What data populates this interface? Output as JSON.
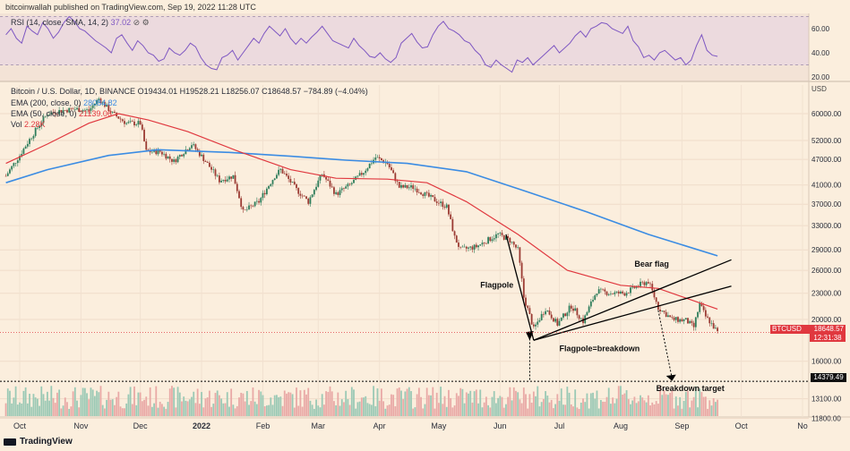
{
  "header": {
    "publisher": "bitcoinwallah published on TradingView.com, Sep 19, 2022 11:28 UTC"
  },
  "rsi": {
    "label": "RSI (14, close, SMA, 14, 2)",
    "value": "37.02",
    "ticks": [
      "60.00",
      "40.00",
      "20.00"
    ],
    "upper": 70,
    "lower": 30,
    "values": [
      55,
      60,
      52,
      48,
      62,
      58,
      55,
      65,
      60,
      52,
      57,
      65,
      70,
      66,
      60,
      58,
      54,
      50,
      47,
      44,
      40,
      52,
      55,
      48,
      42,
      50,
      46,
      40,
      38,
      33,
      35,
      44,
      40,
      38,
      42,
      48,
      45,
      36,
      30,
      27,
      26,
      36,
      38,
      42,
      34,
      40,
      46,
      52,
      48,
      56,
      62,
      58,
      54,
      60,
      52,
      47,
      52,
      48,
      53,
      57,
      62,
      56,
      50,
      48,
      46,
      44,
      52,
      46,
      42,
      37,
      36,
      40,
      35,
      32,
      36,
      48,
      52,
      56,
      49,
      44,
      45,
      55,
      62,
      66,
      60,
      58,
      55,
      50,
      48,
      42,
      38,
      30,
      28,
      34,
      30,
      27,
      24,
      34,
      32,
      36,
      30,
      34,
      38,
      42,
      46,
      40,
      44,
      48,
      54,
      58,
      53,
      60,
      62,
      65,
      64,
      60,
      58,
      56,
      62,
      50,
      45,
      36,
      38,
      34,
      40,
      42,
      38,
      34,
      36,
      30,
      34,
      46,
      55,
      42,
      38,
      37
    ]
  },
  "legend": {
    "title": "Bitcoin / U.S. Dollar, 1D, BINANCE",
    "ohlc": "O19434.01  H19528.21  L18256.07  C18648.57  −784.89 (−4.04%)",
    "ema200_label": "EMA (200, close, 0)",
    "ema200_value": "28084.82",
    "ema50_label": "EMA (50, close, 0)",
    "ema50_value": "21139.06",
    "vol_label": "Vol",
    "vol_value": "2.28K"
  },
  "chart_data": {
    "type": "candlestick",
    "currency": "USD",
    "yticks": [
      60000,
      52000,
      47000,
      41000,
      37000,
      33000,
      29000,
      26000,
      23000,
      20000,
      16000,
      13100,
      11800
    ],
    "ytick_labels": [
      "60000.00",
      "52000.00",
      "47000.00",
      "41000.00",
      "37000.00",
      "33000.00",
      "29000.00",
      "26000.00",
      "23000.00",
      "20000.00",
      "16000.00",
      "13100.00",
      "11800.00"
    ],
    "xticks": [
      {
        "label": "Oct",
        "date": "2021-10-01"
      },
      {
        "label": "Nov",
        "date": "2021-11-01"
      },
      {
        "label": "Dec",
        "date": "2021-12-01"
      },
      {
        "label": "2022",
        "date": "2022-01-01"
      },
      {
        "label": "Feb",
        "date": "2022-02-01"
      },
      {
        "label": "Mar",
        "date": "2022-03-01"
      },
      {
        "label": "Apr",
        "date": "2022-04-01"
      },
      {
        "label": "May",
        "date": "2022-05-01"
      },
      {
        "label": "Jun",
        "date": "2022-06-01"
      },
      {
        "label": "Jul",
        "date": "2022-07-01"
      },
      {
        "label": "Aug",
        "date": "2022-08-01"
      },
      {
        "label": "Sep",
        "date": "2022-09-01"
      },
      {
        "label": "Oct",
        "date": "2022-10-01"
      },
      {
        "label": "No",
        "date": "2022-11-01"
      }
    ],
    "close_series": [
      [
        "2021-09-24",
        43000
      ],
      [
        "2021-10-01",
        48000
      ],
      [
        "2021-10-08",
        54000
      ],
      [
        "2021-10-15",
        60000
      ],
      [
        "2021-10-22",
        61000
      ],
      [
        "2021-10-29",
        61500
      ],
      [
        "2021-11-05",
        61000
      ],
      [
        "2021-11-10",
        65000
      ],
      [
        "2021-11-17",
        60000
      ],
      [
        "2021-11-24",
        57000
      ],
      [
        "2021-12-01",
        57000
      ],
      [
        "2021-12-04",
        49000
      ],
      [
        "2021-12-11",
        49000
      ],
      [
        "2021-12-18",
        46500
      ],
      [
        "2021-12-27",
        51000
      ],
      [
        "2022-01-03",
        46500
      ],
      [
        "2022-01-10",
        42000
      ],
      [
        "2022-01-17",
        43000
      ],
      [
        "2022-01-22",
        35500
      ],
      [
        "2022-01-30",
        37500
      ],
      [
        "2022-02-07",
        43000
      ],
      [
        "2022-02-10",
        44500
      ],
      [
        "2022-02-18",
        40000
      ],
      [
        "2022-02-24",
        37500
      ],
      [
        "2022-03-03",
        43500
      ],
      [
        "2022-03-10",
        39000
      ],
      [
        "2022-03-17",
        41000
      ],
      [
        "2022-03-24",
        44000
      ],
      [
        "2022-03-30",
        47500
      ],
      [
        "2022-04-05",
        46000
      ],
      [
        "2022-04-11",
        40500
      ],
      [
        "2022-04-18",
        40500
      ],
      [
        "2022-04-26",
        38500
      ],
      [
        "2022-05-05",
        36500
      ],
      [
        "2022-05-09",
        31000
      ],
      [
        "2022-05-12",
        29000
      ],
      [
        "2022-05-20",
        29500
      ],
      [
        "2022-05-31",
        31500
      ],
      [
        "2022-06-06",
        30500
      ],
      [
        "2022-06-10",
        29000
      ],
      [
        "2022-06-13",
        22500
      ],
      [
        "2022-06-18",
        19000
      ],
      [
        "2022-06-24",
        21200
      ],
      [
        "2022-06-30",
        19500
      ],
      [
        "2022-07-07",
        21500
      ],
      [
        "2022-07-13",
        19800
      ],
      [
        "2022-07-20",
        23300
      ],
      [
        "2022-07-27",
        23000
      ],
      [
        "2022-08-03",
        23000
      ],
      [
        "2022-08-10",
        24000
      ],
      [
        "2022-08-15",
        24500
      ],
      [
        "2022-08-20",
        21300
      ],
      [
        "2022-08-27",
        20000
      ],
      [
        "2022-09-03",
        19900
      ],
      [
        "2022-09-07",
        19200
      ],
      [
        "2022-09-10",
        21700
      ],
      [
        "2022-09-13",
        20300
      ],
      [
        "2022-09-15",
        19800
      ],
      [
        "2022-09-19",
        18648.57
      ]
    ],
    "ema50_series": [
      [
        "2021-09-24",
        46000
      ],
      [
        "2021-10-15",
        51000
      ],
      [
        "2021-11-05",
        57000
      ],
      [
        "2021-11-20",
        60000
      ],
      [
        "2021-12-05",
        58000
      ],
      [
        "2021-12-25",
        54500
      ],
      [
        "2022-01-20",
        49000
      ],
      [
        "2022-02-15",
        44500
      ],
      [
        "2022-03-10",
        42500
      ],
      [
        "2022-04-05",
        42300
      ],
      [
        "2022-04-25",
        41500
      ],
      [
        "2022-05-15",
        37500
      ],
      [
        "2022-06-10",
        31500
      ],
      [
        "2022-07-05",
        26000
      ],
      [
        "2022-08-01",
        24000
      ],
      [
        "2022-08-20",
        23600
      ],
      [
        "2022-09-19",
        21139.06
      ]
    ],
    "ema200_series": [
      [
        "2021-09-24",
        41500
      ],
      [
        "2021-10-15",
        44500
      ],
      [
        "2021-11-15",
        48000
      ],
      [
        "2021-12-10",
        49500
      ],
      [
        "2022-01-15",
        48800
      ],
      [
        "2022-02-15",
        47800
      ],
      [
        "2022-03-15",
        46800
      ],
      [
        "2022-04-15",
        46000
      ],
      [
        "2022-05-15",
        44000
      ],
      [
        "2022-06-15",
        39500
      ],
      [
        "2022-07-15",
        35500
      ],
      [
        "2022-08-15",
        31500
      ],
      [
        "2022-09-19",
        28084.82
      ]
    ],
    "current_price": {
      "symbol": "BTCUSD",
      "value": "18648.57",
      "countdown": "12:31:38"
    },
    "target_price": {
      "label": "14379.49",
      "value": 14379.49
    },
    "annotations": {
      "bear_flag": "Bear flag",
      "flagpole": "Flagpole",
      "flagpole_breakdown": "Flagpole=breakdown",
      "breakdown_target": "Breakdown target"
    }
  },
  "footer": {
    "brand": "TradingView"
  }
}
